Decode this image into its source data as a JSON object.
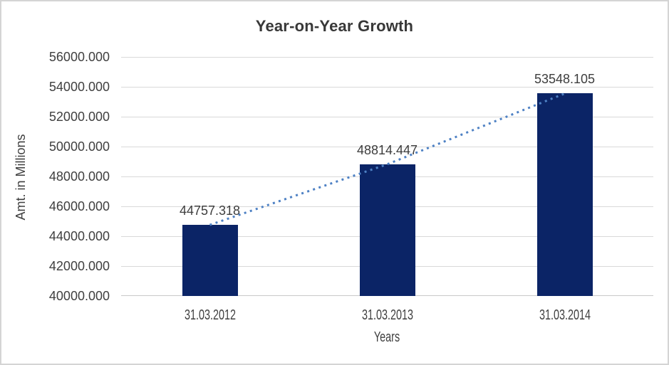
{
  "chart_data": {
    "type": "bar",
    "title": "Year-on-Year Growth",
    "xlabel": "Years",
    "ylabel": "Amt. in Millions",
    "categories": [
      "31.03.2012",
      "31.03.2013",
      "31.03.2014"
    ],
    "series": [
      {
        "type": "bar",
        "values": [
          44757.318,
          48814.447,
          53548.105
        ]
      }
    ],
    "data_labels": [
      "44757.318",
      "48814.447",
      "53548.105"
    ],
    "trendline": {
      "style": "dotted",
      "values": [
        44757.318,
        48814.447,
        53548.105
      ]
    },
    "yticks": [
      "40000.000",
      "42000.000",
      "44000.000",
      "46000.000",
      "48000.000",
      "50000.000",
      "52000.000",
      "54000.000",
      "56000.000"
    ],
    "ylim": [
      40000,
      56000
    ],
    "grid": true,
    "legend": "none",
    "colors": {
      "bar": "#0b2466",
      "trend": "#4e81c4",
      "gridline": "#d9d9d9",
      "axis_line": "#c9c9c9",
      "text": "#3f3f3f",
      "title": "#383838",
      "frame_border": "#d4d4d4",
      "background": "#ffffff"
    }
  }
}
